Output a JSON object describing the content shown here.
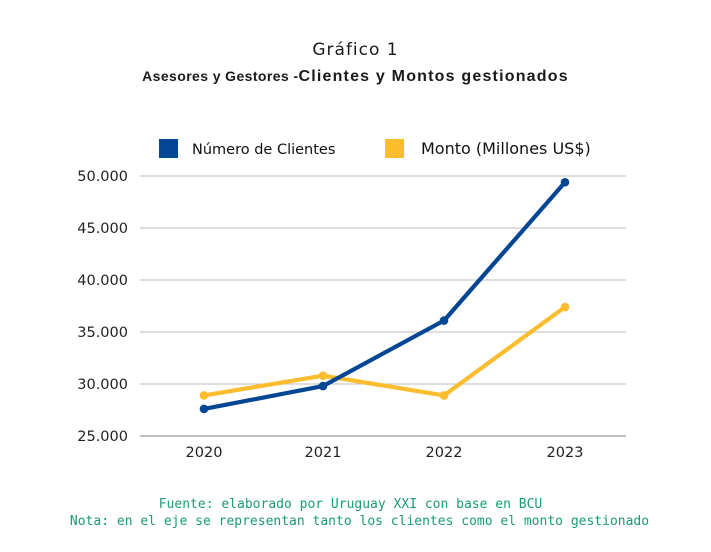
{
  "header": {
    "title": "Gráfico 1",
    "subtitle_part1": "Asesores y Gestores -",
    "subtitle_part2": "Clientes y Montos gestionados"
  },
  "chart_data": {
    "type": "line",
    "title": "Asesores y Gestores -Clientes y Montos gestionados",
    "categories": [
      "2020",
      "2021",
      "2022",
      "2023"
    ],
    "series": [
      {
        "name": "Número de Clientes",
        "color": "#034694",
        "values": [
          27600,
          29800,
          36100,
          49400
        ]
      },
      {
        "name": "Monto (Millones US$)",
        "color": "#fbbd2e",
        "values": [
          28900,
          30800,
          28900,
          37400
        ]
      }
    ],
    "y_ticks": [
      "25.000",
      "30.000",
      "35.000",
      "40.000",
      "45.000",
      "50.000"
    ],
    "y_tick_values": [
      25000,
      30000,
      35000,
      40000,
      45000,
      50000
    ],
    "ylim": [
      25000,
      50000
    ],
    "grid": true,
    "legend_position": "top",
    "xlabel": "",
    "ylabel": ""
  },
  "notes": {
    "source": "Fuente: elaborado por Uruguay XXI con base en BCU",
    "axis_note": "Nota: en el eje se representan tanto los clientes como el monto gestionado"
  }
}
